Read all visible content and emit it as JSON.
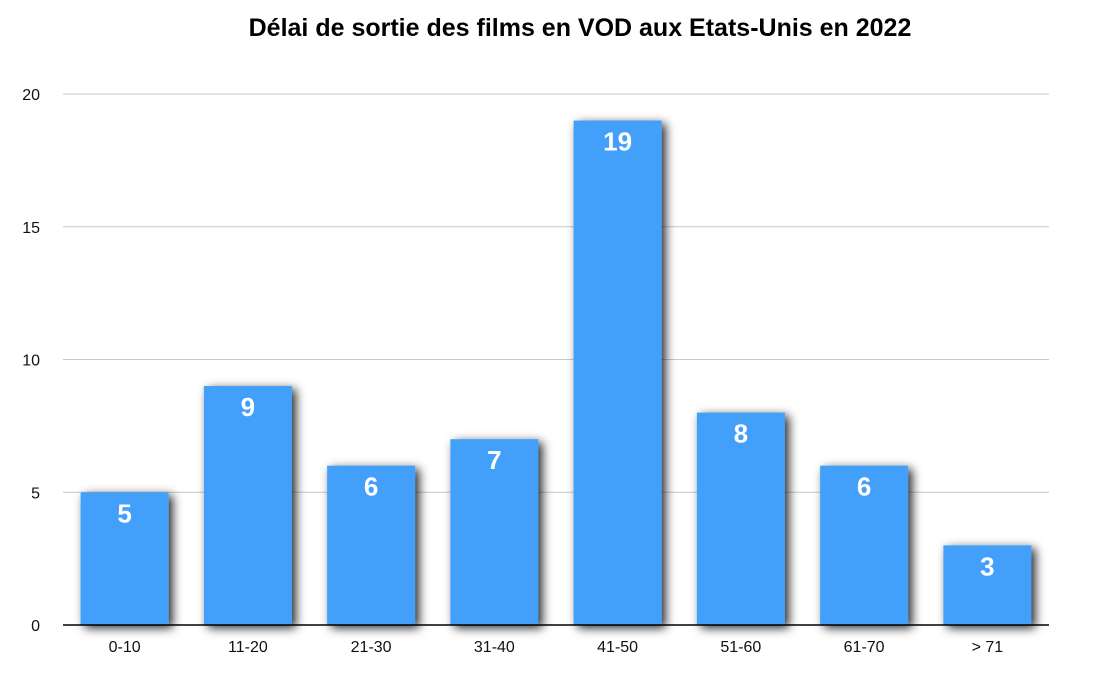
{
  "chart_data": {
    "type": "bar",
    "title": "Délai de sortie des films en VOD aux Etats-Unis en 2022",
    "xlabel": "",
    "ylabel": "",
    "categories": [
      "0-10",
      "11-20",
      "21-30",
      "31-40",
      "41-50",
      "51-60",
      "61-70",
      "> 71"
    ],
    "values": [
      5,
      9,
      6,
      7,
      19,
      8,
      6,
      3
    ],
    "ylim": [
      0,
      20
    ],
    "yticks": [
      0,
      5,
      10,
      15,
      20
    ],
    "grid": true,
    "legend": "none",
    "bar_color": "#42a0fa",
    "bar_shadow": true,
    "data_labels": true
  }
}
